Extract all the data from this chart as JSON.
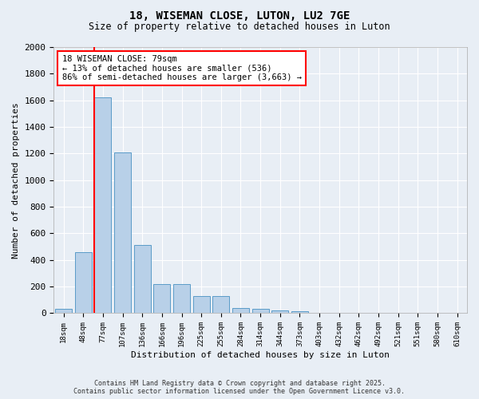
{
  "title1": "18, WISEMAN CLOSE, LUTON, LU2 7GE",
  "title2": "Size of property relative to detached houses in Luton",
  "xlabel": "Distribution of detached houses by size in Luton",
  "ylabel": "Number of detached properties",
  "categories": [
    "18sqm",
    "48sqm",
    "77sqm",
    "107sqm",
    "136sqm",
    "166sqm",
    "196sqm",
    "225sqm",
    "255sqm",
    "284sqm",
    "314sqm",
    "344sqm",
    "373sqm",
    "403sqm",
    "432sqm",
    "462sqm",
    "492sqm",
    "521sqm",
    "551sqm",
    "580sqm",
    "610sqm"
  ],
  "values": [
    30,
    460,
    1620,
    1210,
    510,
    220,
    220,
    130,
    130,
    40,
    30,
    20,
    15,
    0,
    0,
    0,
    0,
    0,
    0,
    0,
    0
  ],
  "bar_color": "#b8d0e8",
  "bar_edge_color": "#5a9bc8",
  "red_line_index": 2,
  "annotation_title": "18 WISEMAN CLOSE: 79sqm",
  "annotation_line1": "← 13% of detached houses are smaller (536)",
  "annotation_line2": "86% of semi-detached houses are larger (3,663) →",
  "ylim": [
    0,
    2000
  ],
  "yticks": [
    0,
    200,
    400,
    600,
    800,
    1000,
    1200,
    1400,
    1600,
    1800,
    2000
  ],
  "footer1": "Contains HM Land Registry data © Crown copyright and database right 2025.",
  "footer2": "Contains public sector information licensed under the Open Government Licence v3.0.",
  "bg_color": "#e8eef5",
  "plot_bg_color": "#e8eef5"
}
